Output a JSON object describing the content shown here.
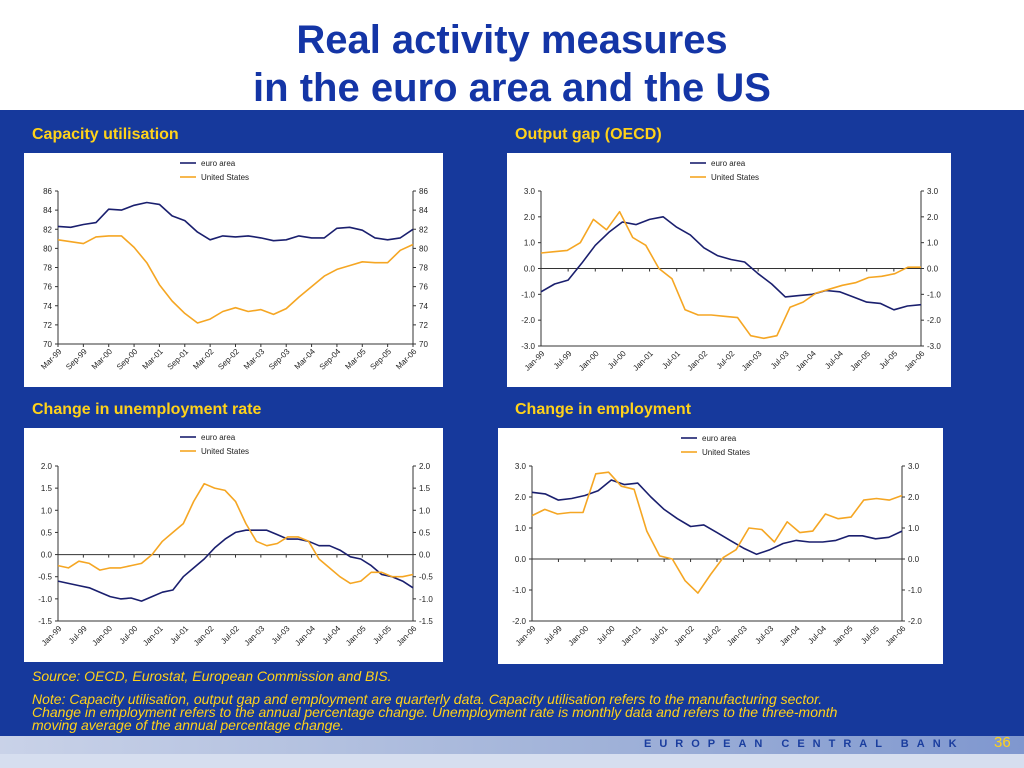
{
  "slide": {
    "title_line1": "Real activity measures",
    "title_line2": "in the euro area and the US",
    "source": "Source: OECD, Eurostat, European Commission and BIS.",
    "note": "Note: Capacity utilisation, output gap and employment are quarterly data. Capacity utilisation refers to the manufacturing sector. Change in employment refers to the annual percentage change. Unemployment rate is monthly data and refers to the three-month moving average of the annual percentage change.",
    "footer_bank": "EUROPEAN CENTRAL BANK",
    "page_number": "36"
  },
  "colors": {
    "euro_area": "#1a1f6e",
    "united_states": "#f5a623",
    "title": "#1435a6",
    "panel_title": "#ffd21a",
    "background": "#16399c"
  },
  "chart_data": [
    {
      "id": "capacity",
      "title": "Capacity utilisation",
      "type": "line",
      "xmode": "index",
      "xticks": [
        "Mar-99",
        "Sep-99",
        "Mar-00",
        "Sep-00",
        "Mar-01",
        "Sep-01",
        "Mar-02",
        "Sep-02",
        "Mar-03",
        "Sep-03",
        "Mar-04",
        "Sep-04",
        "Mar-05",
        "Sep-05",
        "Mar-06"
      ],
      "ylim": [
        70,
        86
      ],
      "yticks": [
        70,
        72,
        74,
        76,
        78,
        80,
        82,
        84,
        86
      ],
      "ydecimals": 0,
      "series": [
        {
          "name": "euro area",
          "color": "#1a1f6e",
          "values": [
            82.3,
            82.2,
            82.5,
            82.7,
            84.1,
            84.0,
            84.5,
            84.8,
            84.6,
            83.4,
            82.9,
            81.7,
            80.9,
            81.3,
            81.2,
            81.3,
            81.1,
            80.8,
            80.9,
            81.3,
            81.1,
            81.1,
            82.1,
            82.2,
            81.9,
            81.1,
            80.9,
            81.1,
            82.0
          ]
        },
        {
          "name": "United States",
          "color": "#f5a623",
          "values": [
            80.9,
            80.7,
            80.5,
            81.2,
            81.3,
            81.3,
            80.1,
            78.5,
            76.2,
            74.5,
            73.2,
            72.2,
            72.6,
            73.4,
            73.8,
            73.4,
            73.6,
            73.1,
            73.7,
            74.9,
            76.0,
            77.1,
            77.8,
            78.2,
            78.6,
            78.5,
            78.5,
            79.8,
            80.4
          ]
        }
      ]
    },
    {
      "id": "outputgap",
      "title": "Output gap (OECD)",
      "type": "line",
      "xmode": "index",
      "xticks": [
        "Jan-99",
        "Jul-99",
        "Jan-00",
        "Jul-00",
        "Jan-01",
        "Jul-01",
        "Jan-02",
        "Jul-02",
        "Jan-03",
        "Jul-03",
        "Jan-04",
        "Jul-04",
        "Jan-05",
        "Jul-05",
        "Jan-06"
      ],
      "ylim": [
        -3.0,
        3.0
      ],
      "yticks": [
        -3.0,
        -2.0,
        -1.0,
        0.0,
        1.0,
        2.0,
        3.0
      ],
      "ydecimals": 1,
      "series": [
        {
          "name": "euro area",
          "color": "#1a1f6e",
          "values": [
            -0.9,
            -0.6,
            -0.45,
            0.2,
            0.9,
            1.4,
            1.8,
            1.7,
            1.9,
            2.0,
            1.6,
            1.3,
            0.8,
            0.5,
            0.35,
            0.25,
            -0.2,
            -0.6,
            -1.1,
            -1.05,
            -1.0,
            -0.85,
            -0.9,
            -1.1,
            -1.3,
            -1.35,
            -1.6,
            -1.45,
            -1.4
          ]
        },
        {
          "name": "United States",
          "color": "#f5a623",
          "values": [
            0.6,
            0.65,
            0.7,
            1.0,
            1.9,
            1.5,
            2.2,
            1.2,
            0.9,
            0.0,
            -0.4,
            -1.6,
            -1.8,
            -1.8,
            -1.85,
            -1.9,
            -2.6,
            -2.7,
            -2.6,
            -1.5,
            -1.3,
            -0.95,
            -0.8,
            -0.65,
            -0.55,
            -0.35,
            -0.3,
            -0.2,
            0.05,
            0.05
          ]
        }
      ]
    },
    {
      "id": "unemployment",
      "title": "Change in unemployment rate",
      "type": "line",
      "xmode": "index",
      "xticks": [
        "Jan-99",
        "Jul-99",
        "Jan-00",
        "Jul-00",
        "Jan-01",
        "Jul-01",
        "Jan-02",
        "Jul-02",
        "Jan-03",
        "Jul-03",
        "Jan-04",
        "Jul-04",
        "Jan-05",
        "Jul-05",
        "Jan-06"
      ],
      "ylim": [
        -1.5,
        2.0
      ],
      "yticks": [
        -1.5,
        -1.0,
        -0.5,
        0.0,
        0.5,
        1.0,
        1.5,
        2.0
      ],
      "ydecimals": 1,
      "series": [
        {
          "name": "euro area",
          "color": "#1a1f6e",
          "values": [
            -0.6,
            -0.65,
            -0.7,
            -0.75,
            -0.85,
            -0.95,
            -1.0,
            -0.98,
            -1.05,
            -0.95,
            -0.85,
            -0.8,
            -0.5,
            -0.3,
            -0.1,
            0.15,
            0.35,
            0.5,
            0.55,
            0.55,
            0.55,
            0.45,
            0.35,
            0.35,
            0.3,
            0.2,
            0.2,
            0.1,
            -0.05,
            -0.1,
            -0.25,
            -0.45,
            -0.5,
            -0.6,
            -0.75
          ]
        },
        {
          "name": "United States",
          "color": "#f5a623",
          "values": [
            -0.25,
            -0.3,
            -0.15,
            -0.2,
            -0.35,
            -0.3,
            -0.3,
            -0.25,
            -0.2,
            0.0,
            0.3,
            0.5,
            0.7,
            1.2,
            1.6,
            1.5,
            1.45,
            1.2,
            0.7,
            0.3,
            0.2,
            0.25,
            0.4,
            0.4,
            0.3,
            -0.1,
            -0.3,
            -0.5,
            -0.65,
            -0.6,
            -0.4,
            -0.4,
            -0.5,
            -0.5,
            -0.45
          ]
        }
      ]
    },
    {
      "id": "employment",
      "title": "Change in employment",
      "type": "line",
      "xmode": "index",
      "xticks": [
        "Jan-99",
        "Jul-99",
        "Jan-00",
        "Jul-00",
        "Jan-01",
        "Jul-01",
        "Jan-02",
        "Jul-02",
        "Jan-03",
        "Jul-03",
        "Jan-04",
        "Jul-04",
        "Jan-05",
        "Jul-05",
        "Jan-06"
      ],
      "ylim": [
        -2.0,
        3.0
      ],
      "yticks": [
        -2.0,
        -1.0,
        0.0,
        1.0,
        2.0,
        3.0
      ],
      "ydecimals": 1,
      "series": [
        {
          "name": "euro area",
          "color": "#1a1f6e",
          "values": [
            2.15,
            2.1,
            1.9,
            1.95,
            2.05,
            2.2,
            2.55,
            2.4,
            2.45,
            2.0,
            1.6,
            1.3,
            1.05,
            1.1,
            0.85,
            0.6,
            0.35,
            0.15,
            0.3,
            0.5,
            0.6,
            0.55,
            0.55,
            0.6,
            0.75,
            0.75,
            0.65,
            0.7,
            0.9
          ]
        },
        {
          "name": "United States",
          "color": "#f5a623",
          "values": [
            1.4,
            1.6,
            1.45,
            1.5,
            1.5,
            2.75,
            2.8,
            2.35,
            2.25,
            0.9,
            0.1,
            0.0,
            -0.7,
            -1.1,
            -0.5,
            0.05,
            0.3,
            1.0,
            0.95,
            0.55,
            1.2,
            0.85,
            0.9,
            1.45,
            1.3,
            1.35,
            1.9,
            1.95,
            1.9,
            2.05
          ]
        }
      ]
    }
  ]
}
